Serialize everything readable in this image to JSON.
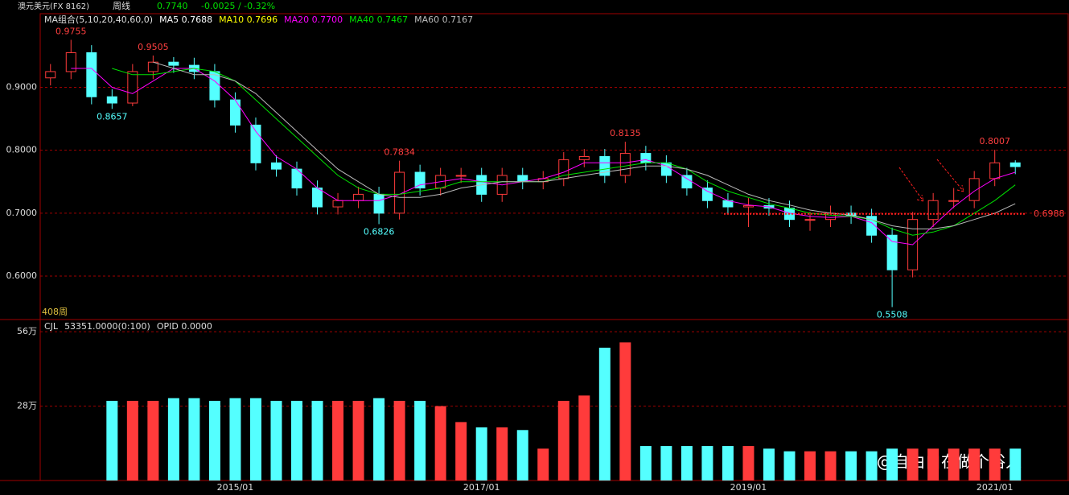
{
  "header": {
    "symbol": "澳元美元(FX 8162)",
    "period": "周线",
    "price": "0.7740",
    "change": "-0.0025 / -0.32%"
  },
  "watermark": "@自由自在做个俗人",
  "chart_data": [
    {
      "type": "candlestick",
      "legend_title": "MA组合(5,10,20,40,60,0)",
      "bar_count_label": "408周",
      "extra_legend": [
        {
          "label": "MA5 0.7688",
          "color": "#ffffff"
        },
        {
          "label": "MA10 0.7696",
          "color": "#ffff00"
        }
      ],
      "open": [
        0.915,
        0.925,
        0.955,
        0.885,
        0.875,
        0.925,
        0.94,
        0.935,
        0.925,
        0.88,
        0.84,
        0.78,
        0.77,
        0.74,
        0.71,
        0.72,
        0.73,
        0.7,
        0.765,
        0.74,
        0.76,
        0.76,
        0.73,
        0.76,
        0.75,
        0.755,
        0.785,
        0.79,
        0.76,
        0.795,
        0.78,
        0.76,
        0.74,
        0.72,
        0.71,
        0.712,
        0.708,
        0.69,
        0.69,
        0.7,
        0.695,
        0.665,
        0.61,
        0.69,
        0.72,
        0.72,
        0.755,
        0.78
      ],
      "high": [
        0.937,
        0.9755,
        0.967,
        0.897,
        0.937,
        0.9505,
        0.948,
        0.947,
        0.937,
        0.892,
        0.852,
        0.792,
        0.782,
        0.752,
        0.732,
        0.742,
        0.742,
        0.7834,
        0.777,
        0.772,
        0.772,
        0.772,
        0.772,
        0.772,
        0.767,
        0.797,
        0.802,
        0.802,
        0.8135,
        0.807,
        0.792,
        0.772,
        0.752,
        0.732,
        0.724,
        0.724,
        0.72,
        0.702,
        0.712,
        0.712,
        0.707,
        0.677,
        0.702,
        0.732,
        0.74,
        0.767,
        0.8007,
        0.784
      ],
      "low": [
        0.903,
        0.913,
        0.873,
        0.8657,
        0.87,
        0.913,
        0.923,
        0.913,
        0.868,
        0.828,
        0.768,
        0.758,
        0.728,
        0.698,
        0.698,
        0.708,
        0.6826,
        0.69,
        0.728,
        0.728,
        0.748,
        0.718,
        0.718,
        0.738,
        0.738,
        0.743,
        0.773,
        0.748,
        0.748,
        0.768,
        0.748,
        0.728,
        0.708,
        0.698,
        0.678,
        0.696,
        0.678,
        0.672,
        0.678,
        0.683,
        0.653,
        0.5508,
        0.598,
        0.678,
        0.708,
        0.708,
        0.743,
        0.762
      ],
      "close": [
        0.925,
        0.955,
        0.885,
        0.875,
        0.925,
        0.94,
        0.935,
        0.925,
        0.88,
        0.84,
        0.78,
        0.77,
        0.74,
        0.71,
        0.72,
        0.73,
        0.7,
        0.765,
        0.74,
        0.76,
        0.76,
        0.73,
        0.76,
        0.75,
        0.755,
        0.785,
        0.79,
        0.76,
        0.795,
        0.78,
        0.76,
        0.74,
        0.72,
        0.71,
        0.712,
        0.708,
        0.69,
        0.69,
        0.7,
        0.695,
        0.665,
        0.61,
        0.69,
        0.72,
        0.72,
        0.755,
        0.78,
        0.774
      ],
      "up_color": "#ff3b3b",
      "down_color": "#54ffff",
      "series": [
        {
          "name": "MA20 0.7700",
          "color": "#ff00ff",
          "values": [
            null,
            0.93,
            0.93,
            0.9,
            0.89,
            0.91,
            0.93,
            0.93,
            0.91,
            0.88,
            0.83,
            0.79,
            0.77,
            0.74,
            0.72,
            0.72,
            0.72,
            0.73,
            0.745,
            0.75,
            0.755,
            0.75,
            0.745,
            0.75,
            0.755,
            0.765,
            0.78,
            0.78,
            0.78,
            0.785,
            0.775,
            0.755,
            0.735,
            0.72,
            0.713,
            0.71,
            0.7,
            0.695,
            0.693,
            0.695,
            0.685,
            0.655,
            0.65,
            0.68,
            0.71,
            0.735,
            0.755,
            0.765
          ]
        },
        {
          "name": "MA40 0.7467",
          "color": "#00e000",
          "values": [
            null,
            null,
            null,
            0.93,
            0.92,
            0.92,
            0.925,
            0.93,
            0.925,
            0.91,
            0.88,
            0.85,
            0.82,
            0.79,
            0.76,
            0.74,
            0.73,
            0.73,
            0.735,
            0.74,
            0.75,
            0.75,
            0.75,
            0.75,
            0.75,
            0.76,
            0.765,
            0.77,
            0.775,
            0.78,
            0.78,
            0.77,
            0.75,
            0.735,
            0.725,
            0.715,
            0.708,
            0.7,
            0.697,
            0.695,
            0.69,
            0.675,
            0.665,
            0.67,
            0.68,
            0.7,
            0.72,
            0.745
          ]
        },
        {
          "name": "MA60 0.7167",
          "color": "#bbbbbb",
          "values": [
            null,
            null,
            null,
            null,
            null,
            0.94,
            0.93,
            0.92,
            0.92,
            0.91,
            0.89,
            0.86,
            0.83,
            0.8,
            0.77,
            0.75,
            0.73,
            0.725,
            0.725,
            0.73,
            0.74,
            0.745,
            0.75,
            0.75,
            0.75,
            0.755,
            0.76,
            0.765,
            0.77,
            0.775,
            0.775,
            0.77,
            0.76,
            0.745,
            0.73,
            0.72,
            0.713,
            0.705,
            0.7,
            0.697,
            0.69,
            0.68,
            0.675,
            0.675,
            0.68,
            0.69,
            0.7,
            0.715
          ]
        }
      ],
      "ylim": [
        0.531,
        1.017
      ],
      "yticks": [
        {
          "value": 0.6,
          "label": "0.6000"
        },
        {
          "value": 0.7,
          "label": "0.7000"
        },
        {
          "value": 0.8,
          "label": "0.8000"
        },
        {
          "value": 0.9,
          "label": "0.9000"
        }
      ],
      "annotations": [
        {
          "value": 0.9755,
          "label": "0.9755"
        },
        {
          "value": 0.8657,
          "label": "0.8657"
        },
        {
          "value": 0.9505,
          "label": "0.9505"
        },
        {
          "value": 0.7834,
          "label": "0.7834"
        },
        {
          "value": 0.6826,
          "label": "0.6826"
        },
        {
          "value": 0.8135,
          "label": "0.8135"
        },
        {
          "value": 0.5508,
          "label": "0.5508"
        },
        {
          "value": 0.8007,
          "label": "0.8007"
        }
      ],
      "hlines": [
        {
          "value": 0.6988,
          "label": "0.6988"
        }
      ]
    },
    {
      "type": "volume",
      "legend": [
        "CJL",
        "53351.0000(0:100)",
        "OPID 0.0000"
      ],
      "values": [
        null,
        null,
        null,
        30,
        30,
        30,
        31,
        31,
        30,
        31,
        31,
        30,
        30,
        30,
        30,
        30,
        31,
        30,
        30,
        28,
        22,
        20,
        20,
        19,
        12,
        30,
        32,
        50,
        52,
        13,
        13,
        13,
        13,
        13,
        13,
        12,
        11,
        11,
        11,
        11,
        11,
        12,
        12,
        12,
        12,
        12,
        12,
        12
      ],
      "categories": [
        null,
        null,
        null,
        null,
        null,
        null,
        null,
        null,
        null,
        "2015/01",
        null,
        null,
        null,
        null,
        null,
        null,
        null,
        null,
        null,
        null,
        null,
        "2017/01",
        null,
        null,
        null,
        null,
        null,
        null,
        null,
        null,
        null,
        null,
        null,
        null,
        "2019/01",
        null,
        null,
        null,
        null,
        null,
        null,
        null,
        null,
        null,
        null,
        null,
        "2021/01",
        null
      ],
      "ylim": [
        0,
        60.6
      ],
      "yticks": [
        {
          "value": 28,
          "label": "28万"
        },
        {
          "value": 56,
          "label": "56万"
        }
      ]
    }
  ]
}
